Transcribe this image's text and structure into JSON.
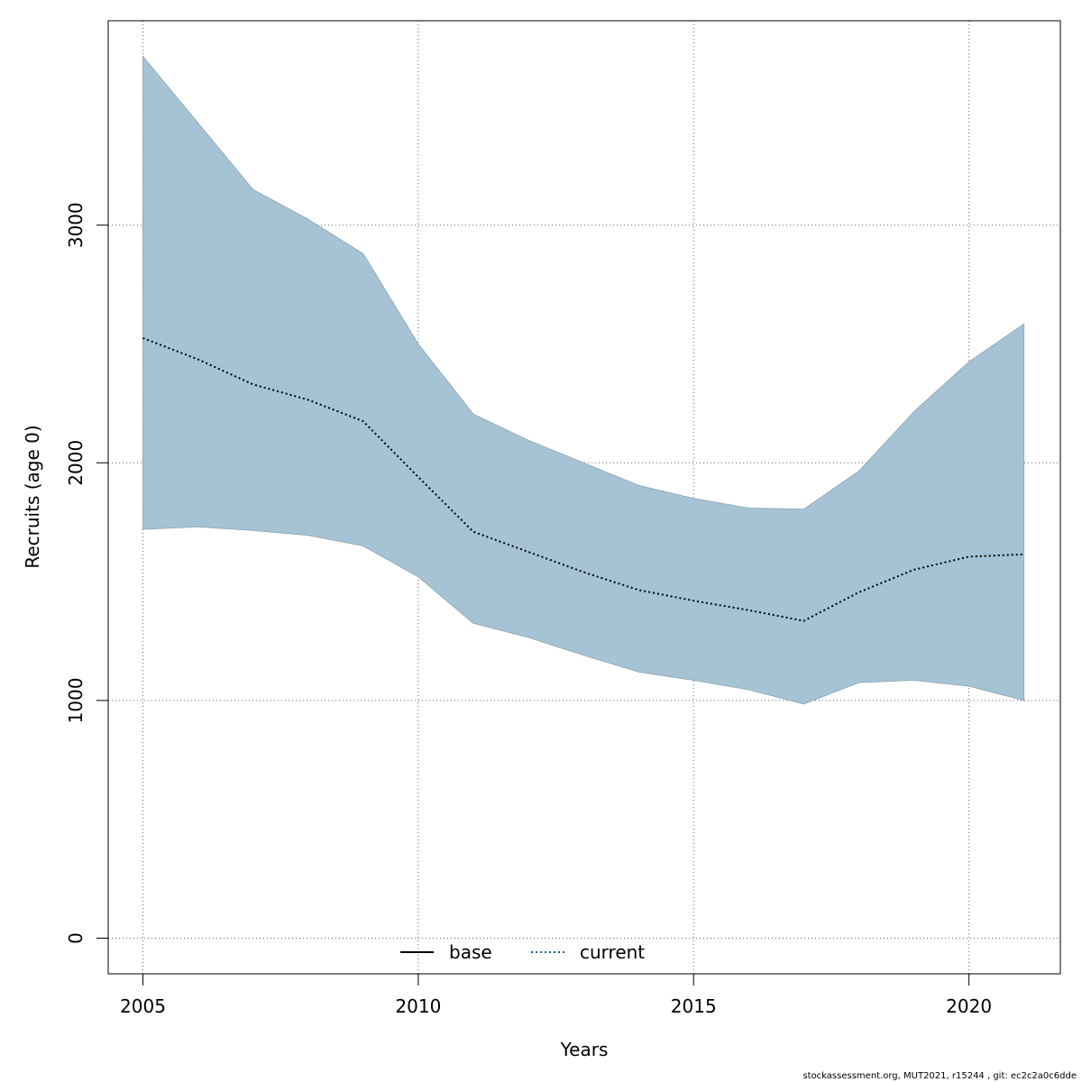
{
  "chart_data": {
    "type": "area",
    "xlabel": "Years",
    "ylabel": "Recruits (age 0)",
    "xlim": [
      2004.37,
      2021.66
    ],
    "ylim": [
      -150,
      3860
    ],
    "xticks": [
      2005,
      2010,
      2015,
      2020
    ],
    "yticks": [
      0,
      1000,
      2000,
      3000
    ],
    "grid": true,
    "legend_position": "bottom-center",
    "x": [
      2005,
      2006,
      2007,
      2008,
      2009,
      2010,
      2011,
      2012,
      2013,
      2014,
      2015,
      2016,
      2017,
      2018,
      2019,
      2020,
      2021
    ],
    "band": {
      "color": "#a5c3d4",
      "upper": [
        3710,
        3430,
        3150,
        3025,
        2880,
        2500,
        2205,
        2095,
        2000,
        1905,
        1850,
        1810,
        1805,
        1965,
        2215,
        2425,
        2585
      ],
      "lower": [
        1720,
        1730,
        1715,
        1695,
        1650,
        1520,
        1325,
        1265,
        1190,
        1120,
        1085,
        1045,
        985,
        1075,
        1085,
        1060,
        1000
      ]
    },
    "series": [
      {
        "name": "base",
        "color": "#000000",
        "style": "solid",
        "values": null
      },
      {
        "name": "current",
        "color": "#1a5e8a",
        "style": "dotted",
        "values": [
          2525,
          2435,
          2330,
          2265,
          2175,
          1940,
          1710,
          1625,
          1540,
          1465,
          1420,
          1380,
          1335,
          1455,
          1550,
          1605,
          1615
        ]
      }
    ]
  },
  "footer": "stockassessment.org, MUT2021, r15244 , git: ec2c2a0c6dde"
}
